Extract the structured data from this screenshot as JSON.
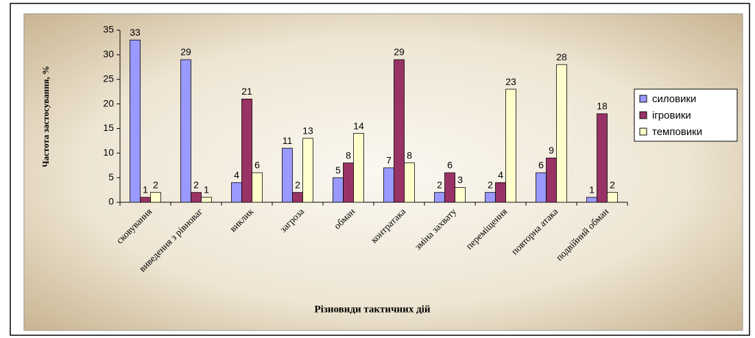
{
  "chart_data": {
    "type": "bar",
    "y_label": "Частота застосування, %",
    "x_label": "Різновиди тактичних дій",
    "categories": [
      "сковування",
      "виведення з рівноваг",
      "виклик",
      "загроза",
      "обман",
      "контратака",
      "зміна захвату",
      "переміщення",
      "повторна атака",
      "подвійний обман"
    ],
    "series": [
      {
        "name": "силовики",
        "color": "#9999ff",
        "values": [
          33,
          29,
          4,
          11,
          5,
          7,
          2,
          2,
          6,
          1
        ]
      },
      {
        "name": "ігровики",
        "color": "#993366",
        "values": [
          1,
          2,
          21,
          2,
          8,
          29,
          6,
          4,
          9,
          18
        ]
      },
      {
        "name": "темповики",
        "color": "#ffffcc",
        "values": [
          2,
          1,
          6,
          13,
          14,
          8,
          3,
          23,
          28,
          2
        ]
      }
    ],
    "ylim": [
      0,
      35
    ],
    "yticks": [
      0,
      5,
      10,
      15,
      20,
      25,
      30,
      35
    ],
    "legend": "right",
    "grid": false
  }
}
